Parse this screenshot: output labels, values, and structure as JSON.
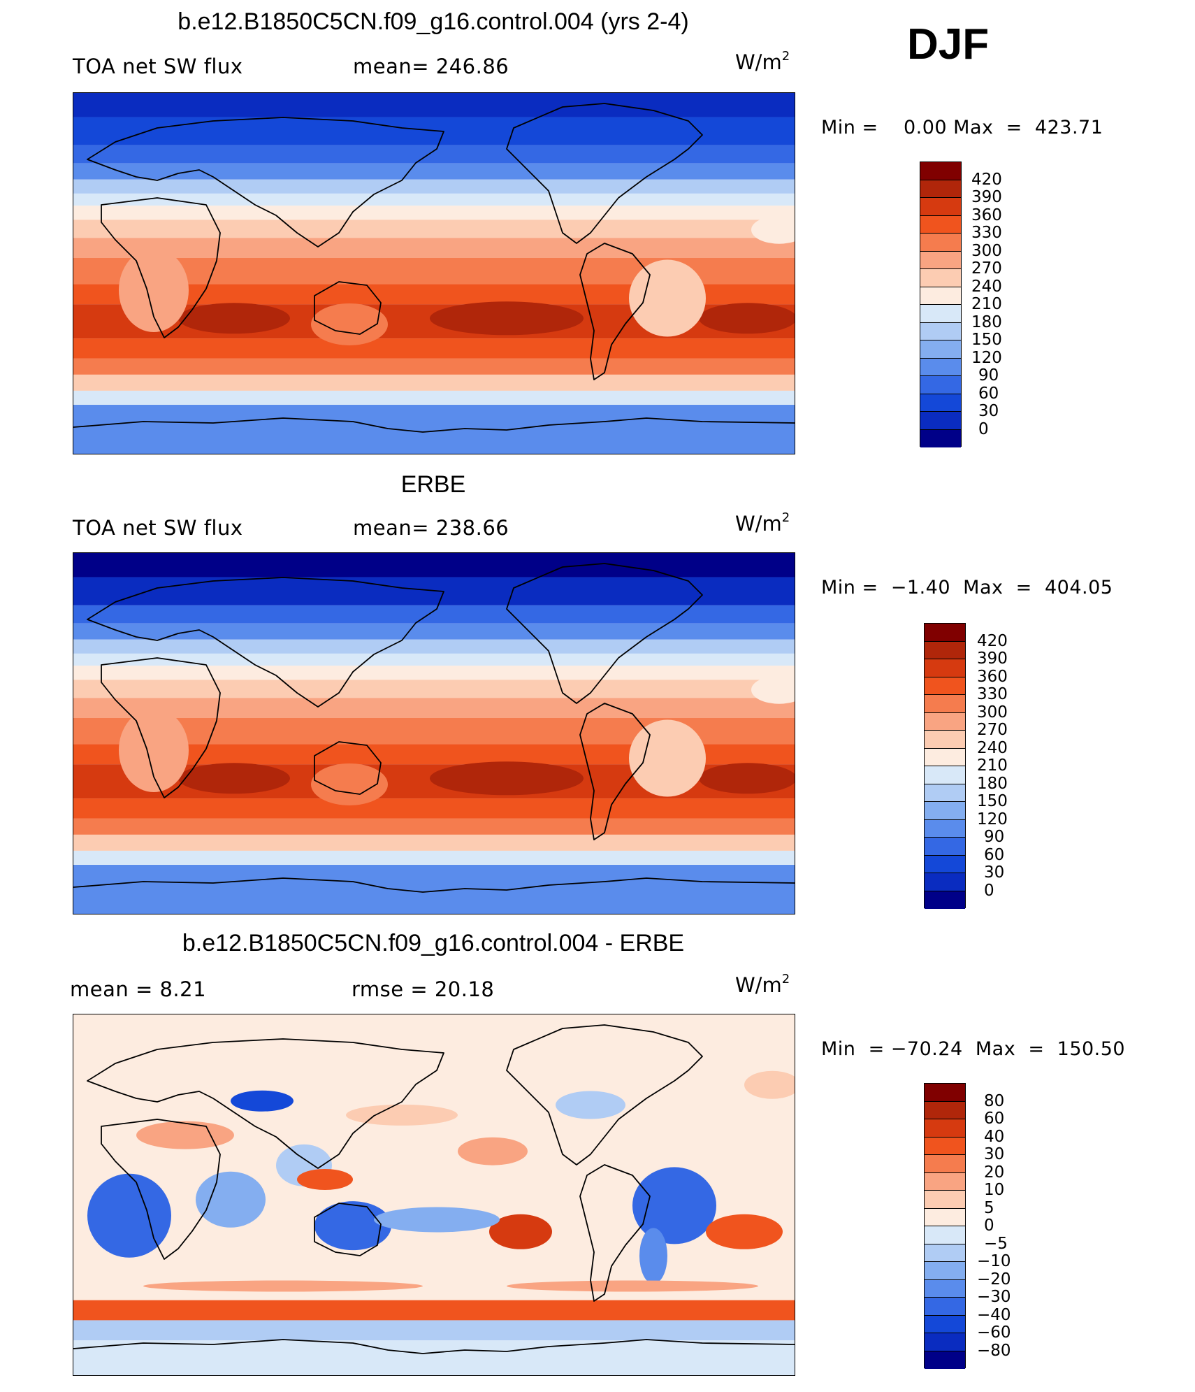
{
  "season": "DJF",
  "chart_data": [
    {
      "type": "heatmap",
      "title": "b.e12.B1850C5CN.f09_g16.control.004 (yrs 2-4)",
      "variable": "TOA net SW flux",
      "stat_text": "mean=  246.86",
      "units_base": "W/m",
      "units_exp": "2",
      "min": "0.00",
      "max": "423.71",
      "minmax_text": "Min =    0.00 Max  =  423.71",
      "colorbar": {
        "levels": [
          "420",
          "390",
          "360",
          "330",
          "300",
          "270",
          "240",
          "210",
          "180",
          "150",
          "120",
          "90",
          "60",
          "30",
          "0"
        ],
        "colors": [
          "#800000",
          "#b0260a",
          "#d63a10",
          "#f0541e",
          "#f57c4e",
          "#f9a482",
          "#fcccb2",
          "#fdece0",
          "#d8e8f8",
          "#b0ccf4",
          "#84aef0",
          "#5a8cec",
          "#3468e4",
          "#1448d8",
          "#0a2cc0",
          "#000088"
        ]
      }
    },
    {
      "type": "heatmap",
      "title": "ERBE",
      "variable": "TOA net SW flux",
      "stat_text": "mean=  238.66",
      "units_base": "W/m",
      "units_exp": "2",
      "min": "−1.40",
      "max": "404.05",
      "minmax_text": "Min =  −1.40  Max  =  404.05",
      "colorbar": {
        "levels": [
          "420",
          "390",
          "360",
          "330",
          "300",
          "270",
          "240",
          "210",
          "180",
          "150",
          "120",
          "90",
          "60",
          "30",
          "0"
        ],
        "colors": [
          "#800000",
          "#b0260a",
          "#d63a10",
          "#f0541e",
          "#f57c4e",
          "#f9a482",
          "#fcccb2",
          "#fdece0",
          "#d8e8f8",
          "#b0ccf4",
          "#84aef0",
          "#5a8cec",
          "#3468e4",
          "#1448d8",
          "#0a2cc0",
          "#000088"
        ]
      }
    },
    {
      "type": "heatmap",
      "title": "b.e12.B1850C5CN.f09_g16.control.004 - ERBE",
      "stat_left": "mean =     8.21",
      "stat_right": "rmse =    20.18",
      "units_base": "W/m",
      "units_exp": "2",
      "min": "−70.24",
      "max": "150.50",
      "minmax_text": "Min  = −70.24  Max  =  150.50",
      "colorbar": {
        "levels": [
          "80",
          "60",
          "40",
          "30",
          "20",
          "10",
          "5",
          "0",
          "−5",
          "−10",
          "−20",
          "−30",
          "−40",
          "−60",
          "−80"
        ],
        "colors": [
          "#800000",
          "#b0260a",
          "#d63a10",
          "#f0541e",
          "#f57c4e",
          "#f9a482",
          "#fcccb2",
          "#fdece0",
          "#d8e8f8",
          "#b0ccf4",
          "#84aef0",
          "#5a8cec",
          "#3468e4",
          "#1448d8",
          "#0a2cc0",
          "#000088"
        ]
      }
    }
  ]
}
